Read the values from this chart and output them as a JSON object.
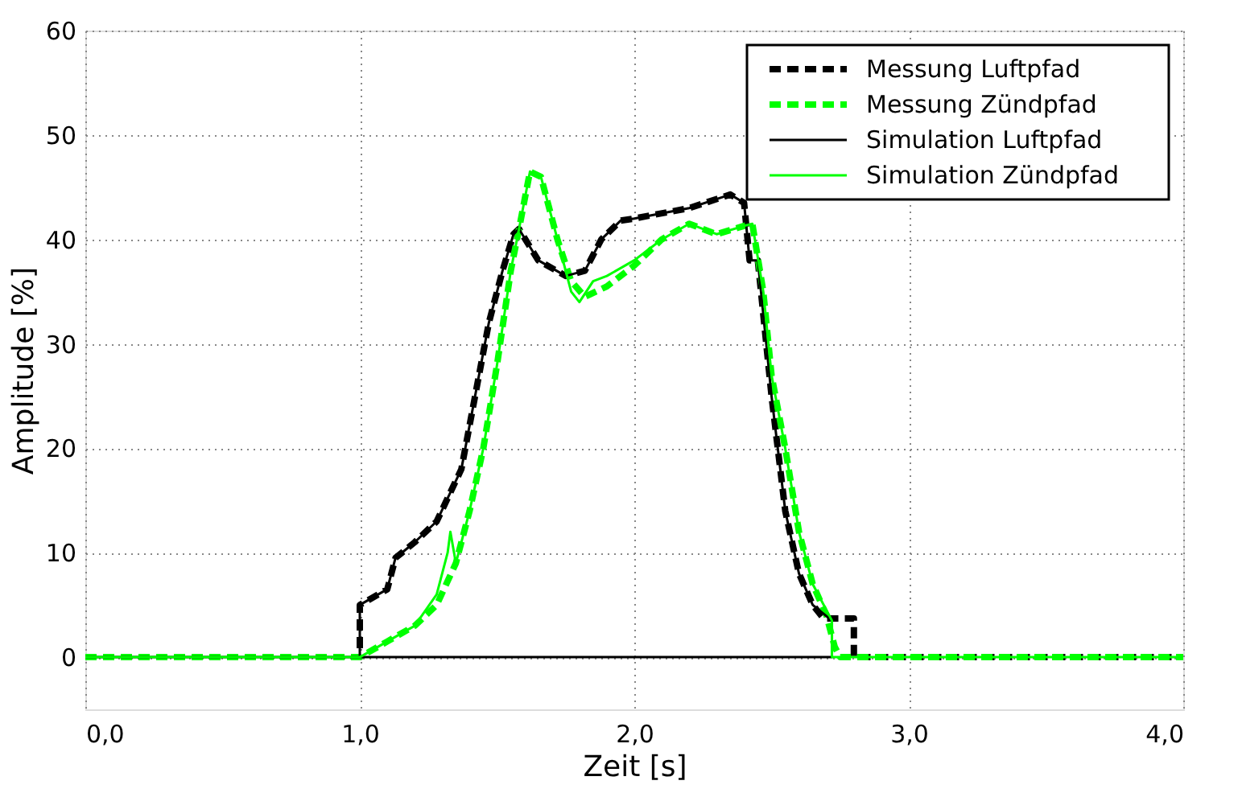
{
  "chart_data": {
    "type": "line",
    "xlabel": "Zeit [s]",
    "ylabel": "Amplitude [%]",
    "xlim": [
      0,
      4
    ],
    "xticks": [
      {
        "value": 0,
        "label": "0,0"
      },
      {
        "value": 1,
        "label": "1,0"
      },
      {
        "value": 2,
        "label": "2,0"
      },
      {
        "value": 3,
        "label": "3,0"
      },
      {
        "value": 4,
        "label": "4,0"
      }
    ],
    "ylim": [
      -5,
      60
    ],
    "yticks": [
      0,
      10,
      20,
      30,
      40,
      50,
      60
    ],
    "grid": true,
    "legend": "top right",
    "marker": "none",
    "series": [
      {
        "name": "Messung Luftpfad",
        "color": "#000000",
        "line_style": "dashed",
        "x": [
          0,
          1.0,
          1.0,
          1.1,
          1.13,
          1.2,
          1.28,
          1.37,
          1.42,
          1.47,
          1.52,
          1.56,
          1.58,
          1.65,
          1.75,
          1.82,
          1.88,
          1.95,
          2.0,
          2.2,
          2.35,
          2.4,
          2.42,
          2.45,
          2.5,
          2.55,
          2.6,
          2.65,
          2.69,
          2.8,
          2.8,
          4.0
        ],
        "values": [
          0,
          0,
          5,
          6.5,
          9.5,
          11,
          13,
          18,
          25,
          32,
          37,
          40.5,
          41,
          38,
          36.5,
          37,
          40,
          41.8,
          42,
          43,
          44.3,
          43.5,
          38,
          38,
          25,
          14,
          8,
          5,
          3.7,
          3.7,
          0,
          0
        ]
      },
      {
        "name": "Messung Zündpfad",
        "color": "#00ff00",
        "line_style": "dashed",
        "x": [
          0,
          1.0,
          1.1,
          1.2,
          1.28,
          1.35,
          1.4,
          1.45,
          1.5,
          1.55,
          1.58,
          1.62,
          1.66,
          1.72,
          1.77,
          1.82,
          1.9,
          2.0,
          2.1,
          2.2,
          2.3,
          2.4,
          2.43,
          2.47,
          2.5,
          2.55,
          2.6,
          2.65,
          2.7,
          2.73,
          2.75,
          4.0
        ],
        "values": [
          0,
          0,
          1.5,
          3,
          5,
          9,
          14,
          20,
          28,
          37,
          41,
          46.5,
          46,
          40,
          36,
          34.5,
          35.5,
          37.5,
          40,
          41.5,
          40.5,
          41.3,
          41.5,
          35,
          27,
          20,
          12,
          7,
          4,
          1,
          0,
          0
        ]
      },
      {
        "name": "Simulation Luftpfad",
        "color": "#000000",
        "line_style": "solid",
        "x": [
          0,
          1.0,
          1.0,
          1.1,
          1.13,
          1.2,
          1.28,
          1.37,
          1.42,
          1.47,
          1.52,
          1.56,
          1.58,
          1.65,
          1.75,
          1.82,
          1.88,
          1.95,
          2.0,
          2.2,
          2.35,
          2.4,
          2.42,
          2.45,
          2.5,
          2.55,
          2.6,
          2.65,
          2.72,
          2.72,
          1.0
        ],
        "values": [
          0,
          0,
          5,
          6.5,
          9.5,
          11,
          13,
          18,
          25,
          32,
          37,
          40.5,
          41,
          38,
          36.5,
          37,
          40,
          41.8,
          42,
          43,
          44.3,
          43.5,
          38,
          38,
          25,
          14,
          8,
          5,
          3.5,
          0,
          0
        ]
      },
      {
        "name": "Simulation Zündpfad",
        "color": "#00ff00",
        "line_style": "solid",
        "x": [
          0,
          1.0,
          1.1,
          1.2,
          1.28,
          1.32,
          1.33,
          1.35,
          1.4,
          1.45,
          1.5,
          1.55,
          1.58,
          1.62,
          1.66,
          1.72,
          1.77,
          1.8,
          1.85,
          1.9,
          2.0,
          2.1,
          2.2,
          2.3,
          2.4,
          2.43,
          2.47,
          2.5,
          2.55,
          2.6,
          2.65,
          2.72,
          2.72,
          4.0
        ],
        "values": [
          0,
          0,
          1.5,
          3,
          6,
          10,
          12,
          9,
          14,
          20,
          28,
          37,
          41,
          46.5,
          46,
          40,
          35,
          34,
          36,
          36.5,
          38,
          40,
          41.5,
          40.5,
          41.3,
          41.5,
          35,
          27,
          20,
          12,
          7,
          3.5,
          0,
          0
        ]
      }
    ]
  }
}
